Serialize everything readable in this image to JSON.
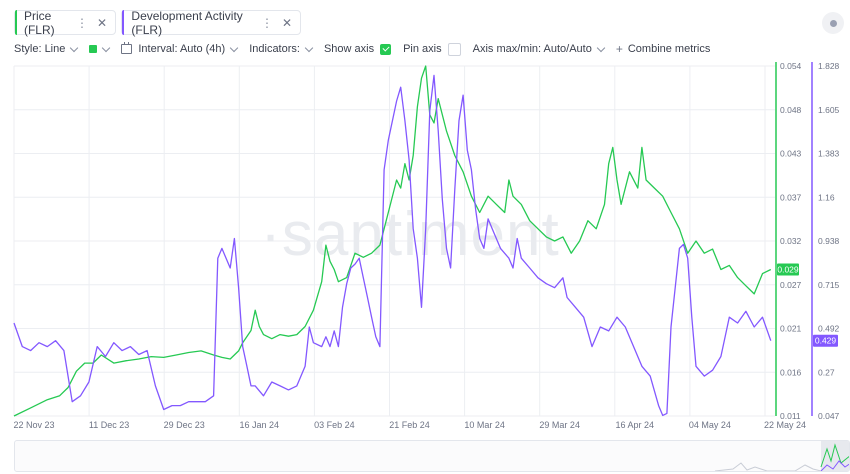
{
  "tabs": [
    {
      "label": "Price (FLR)",
      "color": "#26c953"
    },
    {
      "label": "Development Activity (FLR)",
      "color": "#8358ff"
    }
  ],
  "settings_icon": "circle-dot-icon",
  "toolbar": {
    "style": "Style: Line",
    "interval": "Interval: Auto (4h)",
    "indicators": "Indicators:",
    "show_axis": "Show axis",
    "pin_axis": "Pin axis",
    "axis_maxmin": "Axis max/min: Auto/Auto",
    "combine": "Combine metrics",
    "show_axis_checked": true,
    "pin_axis_checked": false
  },
  "watermark": "·santiment",
  "chart_data": {
    "type": "line",
    "x_ticks": [
      "22 Nov 23",
      "11 Dec 23",
      "29 Dec 23",
      "16 Jan 24",
      "03 Feb 24",
      "21 Feb 24",
      "10 Mar 24",
      "29 Mar 24",
      "16 Apr 24",
      "04 May 24",
      "22 May 24"
    ],
    "y_left": {
      "ticks": [
        "0.054",
        "0.048",
        "0.043",
        "0.037",
        "0.032",
        "0.027",
        "0.021",
        "0.016",
        "0.011"
      ],
      "range": [
        0.011,
        0.054
      ],
      "current": "0.029",
      "color": "#26c953"
    },
    "y_right": {
      "ticks": [
        "1.828",
        "1.605",
        "1.383",
        "1.16",
        "0.938",
        "0.715",
        "0.492",
        "0.27",
        "0.047"
      ],
      "range": [
        0.047,
        1.828
      ],
      "current": "0.429",
      "color": "#8358ff"
    },
    "x_range_days": [
      0,
      183
    ],
    "series": [
      {
        "name": "Price (FLR)",
        "axis": "left",
        "color": "#26c953",
        "points": [
          [
            0,
            0.011
          ],
          [
            4,
            0.012
          ],
          [
            8,
            0.013
          ],
          [
            11,
            0.0135
          ],
          [
            13,
            0.0145
          ],
          [
            15,
            0.0165
          ],
          [
            17,
            0.0175
          ],
          [
            19,
            0.0175
          ],
          [
            21,
            0.0185
          ],
          [
            24,
            0.0175
          ],
          [
            27,
            0.0178
          ],
          [
            30,
            0.018
          ],
          [
            33,
            0.0183
          ],
          [
            36,
            0.0182
          ],
          [
            39,
            0.0185
          ],
          [
            42,
            0.0188
          ],
          [
            45,
            0.019
          ],
          [
            48,
            0.0185
          ],
          [
            50,
            0.0182
          ],
          [
            52,
            0.018
          ],
          [
            54,
            0.019
          ],
          [
            55,
            0.02
          ],
          [
            57,
            0.0215
          ],
          [
            58,
            0.024
          ],
          [
            59,
            0.022
          ],
          [
            60,
            0.021
          ],
          [
            62,
            0.0205
          ],
          [
            64,
            0.021
          ],
          [
            66,
            0.0208
          ],
          [
            68,
            0.021
          ],
          [
            70,
            0.022
          ],
          [
            72,
            0.024
          ],
          [
            74,
            0.0275
          ],
          [
            75,
            0.032
          ],
          [
            76,
            0.03
          ],
          [
            77,
            0.029
          ],
          [
            78,
            0.0275
          ],
          [
            80,
            0.028
          ],
          [
            82,
            0.031
          ],
          [
            84,
            0.0305
          ],
          [
            86,
            0.031
          ],
          [
            88,
            0.032
          ],
          [
            89,
            0.034
          ],
          [
            90,
            0.036
          ],
          [
            92,
            0.04
          ],
          [
            93,
            0.039
          ],
          [
            94,
            0.042
          ],
          [
            95,
            0.04
          ],
          [
            96,
            0.043
          ],
          [
            97,
            0.049
          ],
          [
            98,
            0.0525
          ],
          [
            99,
            0.054
          ],
          [
            100,
            0.048
          ],
          [
            101,
            0.047
          ],
          [
            102,
            0.05
          ],
          [
            104,
            0.046
          ],
          [
            106,
            0.043
          ],
          [
            108,
            0.041
          ],
          [
            110,
            0.038
          ],
          [
            112,
            0.036
          ],
          [
            114,
            0.038
          ],
          [
            116,
            0.037
          ],
          [
            118,
            0.036
          ],
          [
            119,
            0.04
          ],
          [
            120,
            0.038
          ],
          [
            122,
            0.037
          ],
          [
            124,
            0.035
          ],
          [
            126,
            0.034
          ],
          [
            128,
            0.033
          ],
          [
            130,
            0.0325
          ],
          [
            132,
            0.033
          ],
          [
            134,
            0.031
          ],
          [
            136,
            0.0325
          ],
          [
            138,
            0.035
          ],
          [
            140,
            0.034
          ],
          [
            142,
            0.037
          ],
          [
            143,
            0.042
          ],
          [
            144,
            0.044
          ],
          [
            145,
            0.04
          ],
          [
            146,
            0.037
          ],
          [
            148,
            0.041
          ],
          [
            150,
            0.039
          ],
          [
            151,
            0.044
          ],
          [
            152,
            0.04
          ],
          [
            154,
            0.039
          ],
          [
            156,
            0.038
          ],
          [
            158,
            0.036
          ],
          [
            160,
            0.034
          ],
          [
            162,
            0.031
          ],
          [
            164,
            0.0325
          ],
          [
            166,
            0.031
          ],
          [
            168,
            0.0315
          ],
          [
            170,
            0.029
          ],
          [
            172,
            0.0295
          ],
          [
            174,
            0.028
          ],
          [
            176,
            0.027
          ],
          [
            178,
            0.026
          ],
          [
            180,
            0.0285
          ],
          [
            182,
            0.029
          ]
        ]
      },
      {
        "name": "Development Activity (FLR)",
        "axis": "right",
        "color": "#8358ff",
        "points": [
          [
            0,
            0.52
          ],
          [
            2,
            0.4
          ],
          [
            4,
            0.38
          ],
          [
            6,
            0.42
          ],
          [
            8,
            0.4
          ],
          [
            10,
            0.43
          ],
          [
            12,
            0.38
          ],
          [
            14,
            0.12
          ],
          [
            16,
            0.15
          ],
          [
            18,
            0.22
          ],
          [
            20,
            0.4
          ],
          [
            22,
            0.35
          ],
          [
            24,
            0.42
          ],
          [
            26,
            0.38
          ],
          [
            28,
            0.4
          ],
          [
            30,
            0.36
          ],
          [
            32,
            0.38
          ],
          [
            34,
            0.2
          ],
          [
            36,
            0.08
          ],
          [
            38,
            0.1
          ],
          [
            40,
            0.1
          ],
          [
            42,
            0.12
          ],
          [
            44,
            0.12
          ],
          [
            46,
            0.12
          ],
          [
            48,
            0.15
          ],
          [
            49,
            0.85
          ],
          [
            50,
            0.9
          ],
          [
            52,
            0.8
          ],
          [
            53,
            0.95
          ],
          [
            54,
            0.7
          ],
          [
            55,
            0.4
          ],
          [
            56,
            0.3
          ],
          [
            57,
            0.2
          ],
          [
            58,
            0.2
          ],
          [
            60,
            0.15
          ],
          [
            62,
            0.22
          ],
          [
            64,
            0.2
          ],
          [
            66,
            0.18
          ],
          [
            68,
            0.2
          ],
          [
            70,
            0.3
          ],
          [
            71,
            0.5
          ],
          [
            72,
            0.42
          ],
          [
            74,
            0.4
          ],
          [
            75,
            0.45
          ],
          [
            76,
            0.4
          ],
          [
            77,
            0.48
          ],
          [
            78,
            0.4
          ],
          [
            79,
            0.6
          ],
          [
            80,
            0.72
          ],
          [
            81,
            0.8
          ],
          [
            82,
            0.82
          ],
          [
            83,
            0.85
          ],
          [
            84,
            0.75
          ],
          [
            85,
            0.65
          ],
          [
            86,
            0.55
          ],
          [
            87,
            0.45
          ],
          [
            88,
            0.4
          ],
          [
            89,
            1.3
          ],
          [
            90,
            1.45
          ],
          [
            92,
            1.65
          ],
          [
            93,
            1.72
          ],
          [
            94,
            1.55
          ],
          [
            95,
            1.35
          ],
          [
            96,
            1.0
          ],
          [
            97,
            0.85
          ],
          [
            98,
            0.6
          ],
          [
            99,
            1.0
          ],
          [
            100,
            1.6
          ],
          [
            101,
            1.78
          ],
          [
            102,
            1.5
          ],
          [
            103,
            1.15
          ],
          [
            104,
            0.9
          ],
          [
            105,
            0.8
          ],
          [
            106,
            1.2
          ],
          [
            107,
            1.55
          ],
          [
            108,
            1.68
          ],
          [
            109,
            1.4
          ],
          [
            110,
            1.3
          ],
          [
            111,
            1.1
          ],
          [
            112,
            0.95
          ],
          [
            113,
            0.9
          ],
          [
            114,
            1.05
          ],
          [
            115,
            1.0
          ],
          [
            117,
            0.9
          ],
          [
            119,
            0.85
          ],
          [
            120,
            0.8
          ],
          [
            121,
            0.95
          ],
          [
            122,
            0.85
          ],
          [
            124,
            0.8
          ],
          [
            126,
            0.75
          ],
          [
            128,
            0.72
          ],
          [
            130,
            0.7
          ],
          [
            132,
            0.75
          ],
          [
            133,
            0.65
          ],
          [
            135,
            0.6
          ],
          [
            137,
            0.55
          ],
          [
            139,
            0.4
          ],
          [
            141,
            0.5
          ],
          [
            143,
            0.48
          ],
          [
            145,
            0.55
          ],
          [
            147,
            0.5
          ],
          [
            149,
            0.4
          ],
          [
            151,
            0.3
          ],
          [
            153,
            0.25
          ],
          [
            155,
            0.1
          ],
          [
            156,
            0.05
          ],
          [
            157,
            0.06
          ],
          [
            158,
            0.5
          ],
          [
            159,
            0.7
          ],
          [
            160,
            0.9
          ],
          [
            161,
            0.92
          ],
          [
            162,
            0.85
          ],
          [
            163,
            0.55
          ],
          [
            164,
            0.3
          ],
          [
            166,
            0.25
          ],
          [
            168,
            0.28
          ],
          [
            170,
            0.35
          ],
          [
            172,
            0.55
          ],
          [
            174,
            0.52
          ],
          [
            176,
            0.58
          ],
          [
            178,
            0.5
          ],
          [
            180,
            0.55
          ],
          [
            182,
            0.43
          ]
        ]
      }
    ]
  }
}
